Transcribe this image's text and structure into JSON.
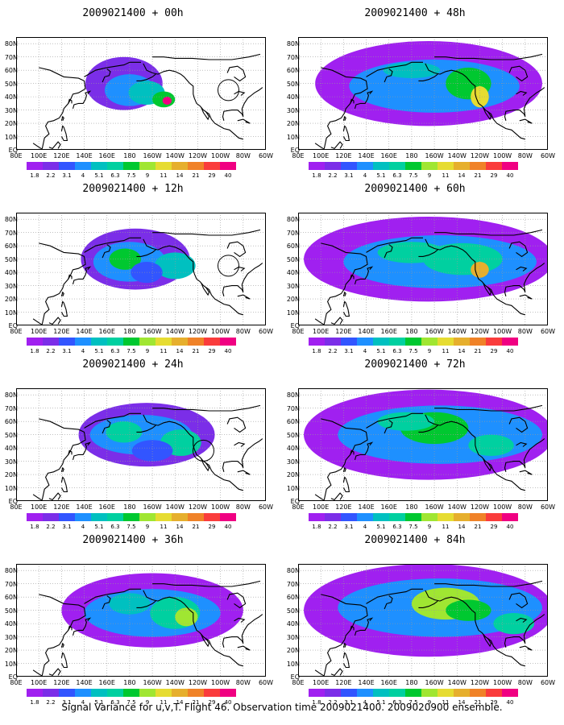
{
  "panels": [
    {
      "title": "2009021400 + 00h",
      "lead": 0
    },
    {
      "title": "2009021400 + 48h",
      "lead": 48
    },
    {
      "title": "2009021400 + 12h",
      "lead": 12
    },
    {
      "title": "2009021400 + 60h",
      "lead": 60
    },
    {
      "title": "2009021400 + 24h",
      "lead": 24
    },
    {
      "title": "2009021400 + 72h",
      "lead": 72
    },
    {
      "title": "2009021400 + 36h",
      "lead": 36
    },
    {
      "title": "2009021400 + 84h",
      "lead": 84
    }
  ],
  "lat_labels": [
    "80N",
    "70N",
    "60N",
    "50N",
    "40N",
    "30N",
    "20N",
    "10N",
    "EQ"
  ],
  "lon_labels": [
    "80E",
    "100E",
    "120E",
    "140E",
    "160E",
    "180",
    "160W",
    "140W",
    "120W",
    "100W",
    "80W",
    "60W"
  ],
  "colorbar": {
    "colors": [
      "#a020f0",
      "#7b2ee8",
      "#3255ff",
      "#1e90ff",
      "#00c0c0",
      "#00d0a0",
      "#00c830",
      "#a0e632",
      "#e6dc32",
      "#e6af2d",
      "#f08228",
      "#fa3c3c",
      "#f00082"
    ],
    "labels": [
      "1.8",
      "2.2",
      "3.1",
      "4",
      "5.1",
      "6.3",
      "7.5",
      "9",
      "11",
      "14",
      "21",
      "29",
      "40"
    ]
  },
  "caption": "Signal Variance for u,v,T. Flight 46. Observation time 2009021400. 2009020900 ensemble.",
  "map_style": {
    "coastline": "#000000",
    "grid": "#9a9a9a",
    "field_levels": 13
  }
}
